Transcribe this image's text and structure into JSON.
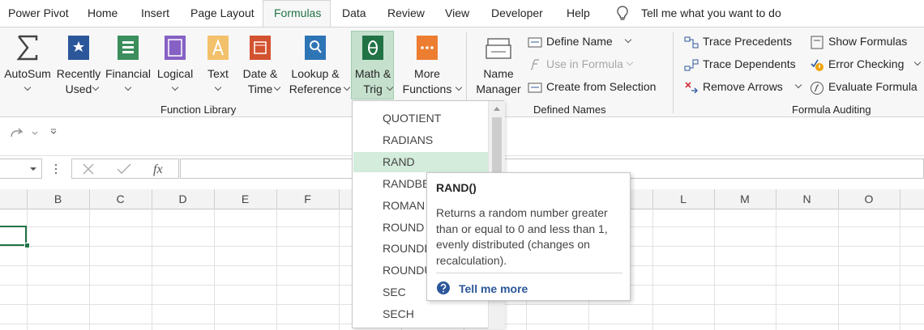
{
  "tabs": [
    "Power Pivot",
    "Home",
    "Insert",
    "Page Layout",
    "Formulas",
    "Data",
    "Review",
    "View",
    "Developer",
    "Help"
  ],
  "tell_me": "Tell me what you want to do",
  "function_library": {
    "label": "Function Library",
    "buttons": [
      {
        "lines": [
          "AutoSum"
        ]
      },
      {
        "lines": [
          "Recently",
          "Used"
        ]
      },
      {
        "lines": [
          "Financial"
        ]
      },
      {
        "lines": [
          "Logical"
        ]
      },
      {
        "lines": [
          "Text"
        ]
      },
      {
        "lines": [
          "Date &",
          "Time"
        ]
      },
      {
        "lines": [
          "Lookup &",
          "Reference"
        ]
      },
      {
        "lines": [
          "Math &",
          "Trig"
        ]
      },
      {
        "lines": [
          "More",
          "Functions"
        ]
      }
    ]
  },
  "defined_names": {
    "label": "Defined Names",
    "name_manager": [
      "Name",
      "Manager"
    ],
    "items": [
      "Define Name",
      "Use in Formula",
      "Create from Selection"
    ]
  },
  "formula_auditing": {
    "label": "Formula Auditing",
    "items": [
      "Trace Precedents",
      "Trace Dependents",
      "Remove Arrows",
      "Show Formulas",
      "Error Checking",
      "Evaluate Formula"
    ]
  },
  "formula_bar": {
    "fx": "fx"
  },
  "columns": [
    "B",
    "C",
    "D",
    "E",
    "F",
    "L",
    "M",
    "N",
    "O"
  ],
  "dropdown": {
    "items": [
      "QUOTIENT",
      "RADIANS",
      "RAND",
      "RANDBETWEEN",
      "ROMAN",
      "ROUND",
      "ROUNDDOWN",
      "ROUNDUP",
      "SEC",
      "SECH"
    ]
  },
  "tooltip": {
    "title": "RAND()",
    "description": "Returns a random number greater than or equal to 0 and less than 1, evenly distributed (changes on recalculation).",
    "link": "Tell me more"
  }
}
